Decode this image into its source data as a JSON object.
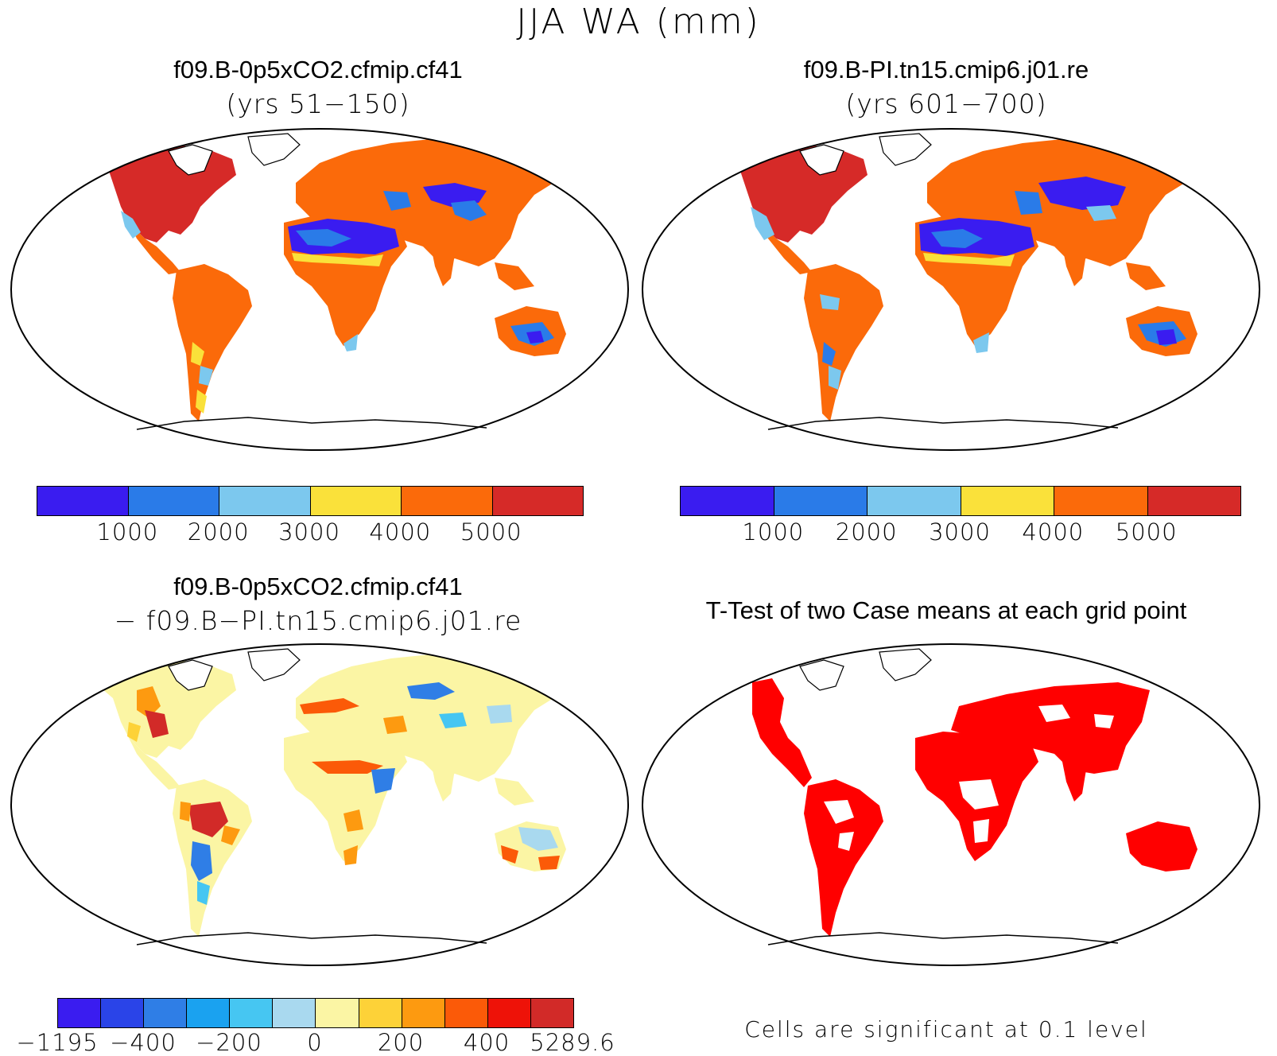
{
  "figure": {
    "title": "JJA WA (mm)"
  },
  "panels": {
    "top_left": {
      "title": "f09.B-0p5xCO2.cfmip.cf41",
      "subtitle": "(yrs 51−150)",
      "type": "mean_field",
      "colorbar": {
        "colors": [
          "#3a1cf0",
          "#2a7be8",
          "#7cc8ee",
          "#fae13a",
          "#fb6a0a",
          "#d62a28"
        ],
        "ticks": [
          "1000",
          "2000",
          "3000",
          "4000",
          "5000"
        ]
      }
    },
    "top_right": {
      "title": "f09.B-PI.tn15.cmip6.j01.re",
      "subtitle": "(yrs 601−700)",
      "type": "mean_field",
      "colorbar": {
        "colors": [
          "#3a1cf0",
          "#2a7be8",
          "#7cc8ee",
          "#fae13a",
          "#fb6a0a",
          "#d62a28"
        ],
        "ticks": [
          "1000",
          "2000",
          "3000",
          "4000",
          "5000"
        ]
      }
    },
    "bottom_left": {
      "title": "f09.B-0p5xCO2.cfmip.cf41",
      "subtitle": "− f09.B−PI.tn15.cmip6.j01.re",
      "type": "difference",
      "colorbar": {
        "colors": [
          "#3a1cf0",
          "#2a44e8",
          "#2f7ee6",
          "#1aa2f0",
          "#46c6f2",
          "#a9d9ef",
          "#fbf5a4",
          "#fdd238",
          "#fd9a10",
          "#fb5a08",
          "#ee1208",
          "#d22a28"
        ],
        "ticks": [
          "−1195",
          "−400",
          "−200",
          "0",
          "200",
          "400",
          "5289.6"
        ]
      }
    },
    "bottom_right": {
      "title": "T-Test of two Case means at each grid point",
      "type": "significance",
      "note": "Cells are significant at 0.1 level",
      "color": "#ff0000"
    }
  }
}
